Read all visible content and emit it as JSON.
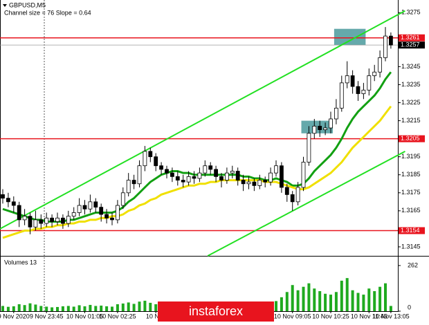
{
  "chart_data": {
    "type": "candlestick",
    "symbol": "GBPUSD,M5",
    "indicator": "Channel size = 76 Slope = 0.64",
    "volume_label": "Volumes 13",
    "watermark": "instaforex",
    "ylim": [
      1.314,
      1.3282
    ],
    "yticks": [
      1.3145,
      1.3165,
      1.3175,
      1.3185,
      1.3195,
      1.3215,
      1.3225,
      1.3235,
      1.3245,
      1.3275
    ],
    "levels": [
      1.3261,
      1.3205,
      1.3154
    ],
    "level_color": "#e8141e",
    "current_price": 1.3257,
    "categories": [
      null,
      null,
      "9 Nov 2020",
      null,
      null,
      null,
      null,
      null,
      "9 Nov 23:45",
      null,
      null,
      null,
      null,
      null,
      null,
      "10 Nov 01:05",
      null,
      null,
      null,
      null,
      null,
      "10 Nov 02:25",
      null,
      null,
      null,
      null,
      null,
      null,
      "10 Nov",
      null,
      null,
      null,
      null,
      null,
      null,
      null,
      null,
      null,
      null,
      null,
      null,
      null,
      null,
      null,
      null,
      null,
      null,
      null,
      null,
      null,
      null,
      null,
      null,
      "10 Nov 09:05",
      null,
      null,
      null,
      null,
      null,
      null,
      "10 Nov 10:25",
      null,
      null,
      null,
      null,
      null,
      null,
      "10 Nov 11:45",
      null,
      null,
      null,
      "10 Nov 13:05"
    ],
    "candles": {
      "open": [
        1.3174,
        1.3172,
        1.317,
        1.3168,
        1.316,
        1.3162,
        1.3156,
        1.316,
        1.3158,
        1.3161,
        1.3159,
        1.3161,
        1.3158,
        1.3162,
        1.3164,
        1.3168,
        1.3166,
        1.317,
        1.3167,
        1.3163,
        1.3161,
        1.316,
        1.3168,
        1.3175,
        1.3182,
        1.318,
        1.319,
        1.3198,
        1.3195,
        1.319,
        1.3188,
        1.3186,
        1.3184,
        1.3182,
        1.3181,
        1.3184,
        1.3183,
        1.3186,
        1.319,
        1.3188,
        1.3184,
        1.3182,
        1.3186,
        1.3187,
        1.3182,
        1.318,
        1.3181,
        1.3179,
        1.3182,
        1.3181,
        1.3186,
        1.319,
        1.3178,
        1.3174,
        1.317,
        1.3178,
        1.3192,
        1.3208,
        1.3212,
        1.321,
        1.3211,
        1.3216,
        1.3222,
        1.3236,
        1.324,
        1.3234,
        1.323,
        1.3232,
        1.324,
        1.3242,
        1.325,
        1.3262
      ],
      "high": [
        1.3177,
        1.3175,
        1.3173,
        1.317,
        1.3166,
        1.3164,
        1.3165,
        1.3163,
        1.3164,
        1.3163,
        1.3164,
        1.3163,
        1.3165,
        1.3167,
        1.3172,
        1.3171,
        1.3174,
        1.3172,
        1.3169,
        1.3166,
        1.3164,
        1.3171,
        1.3178,
        1.3186,
        1.3185,
        1.3193,
        1.3201,
        1.32,
        1.3197,
        1.3192,
        1.319,
        1.3189,
        1.3187,
        1.3185,
        1.3187,
        1.3187,
        1.3189,
        1.3193,
        1.3192,
        1.319,
        1.3186,
        1.3189,
        1.319,
        1.3189,
        1.3185,
        1.3184,
        1.3183,
        1.3185,
        1.3184,
        1.3189,
        1.3193,
        1.3192,
        1.318,
        1.3176,
        1.3181,
        1.3195,
        1.3212,
        1.3216,
        1.3215,
        1.3214,
        1.322,
        1.3227,
        1.324,
        1.3248,
        1.3243,
        1.3237,
        1.3236,
        1.3244,
        1.3246,
        1.3254,
        1.3267,
        1.3264
      ],
      "low": [
        1.3169,
        1.3167,
        1.3164,
        1.3156,
        1.3157,
        1.3152,
        1.3154,
        1.3155,
        1.3156,
        1.3156,
        1.3157,
        1.3155,
        1.3156,
        1.316,
        1.3162,
        1.3163,
        1.3164,
        1.3164,
        1.3159,
        1.3158,
        1.3157,
        1.3158,
        1.3166,
        1.3173,
        1.3177,
        1.3178,
        1.3187,
        1.3192,
        1.3187,
        1.3185,
        1.3183,
        1.3181,
        1.3179,
        1.3178,
        1.3179,
        1.318,
        1.3181,
        1.3184,
        1.3185,
        1.3181,
        1.3178,
        1.318,
        1.3183,
        1.3179,
        1.3176,
        1.3177,
        1.3176,
        1.3177,
        1.3178,
        1.3179,
        1.3184,
        1.3175,
        1.317,
        1.3165,
        1.3168,
        1.3176,
        1.319,
        1.3205,
        1.3206,
        1.3207,
        1.3208,
        1.3213,
        1.322,
        1.3233,
        1.323,
        1.3226,
        1.3227,
        1.3229,
        1.3237,
        1.3239,
        1.3248,
        1.3255
      ],
      "close": [
        1.3172,
        1.317,
        1.3168,
        1.316,
        1.3162,
        1.3156,
        1.316,
        1.3158,
        1.3161,
        1.3159,
        1.3161,
        1.3158,
        1.3162,
        1.3164,
        1.3168,
        1.3166,
        1.317,
        1.3167,
        1.3163,
        1.3161,
        1.316,
        1.3168,
        1.3175,
        1.3182,
        1.318,
        1.319,
        1.3198,
        1.3195,
        1.319,
        1.3188,
        1.3186,
        1.3184,
        1.3182,
        1.3181,
        1.3184,
        1.3183,
        1.3186,
        1.319,
        1.3188,
        1.3184,
        1.3182,
        1.3186,
        1.3187,
        1.3182,
        1.318,
        1.3181,
        1.3179,
        1.3182,
        1.3181,
        1.3186,
        1.319,
        1.3178,
        1.3174,
        1.317,
        1.3178,
        1.3192,
        1.3208,
        1.3212,
        1.321,
        1.3211,
        1.3216,
        1.3222,
        1.3236,
        1.324,
        1.3234,
        1.323,
        1.3232,
        1.324,
        1.3242,
        1.325,
        1.3262,
        1.3257
      ]
    },
    "moving_averages": [
      {
        "color": "#12a012",
        "values": [
          1.3166,
          1.3165,
          1.3164,
          1.3163,
          1.3162,
          1.3161,
          1.316,
          1.316,
          1.3159,
          1.3159,
          1.3159,
          1.3159,
          1.316,
          1.316,
          1.3161,
          1.3162,
          1.3163,
          1.3164,
          1.3164,
          1.3164,
          1.3164,
          1.3165,
          1.3167,
          1.317,
          1.3172,
          1.3175,
          1.3178,
          1.3181,
          1.3183,
          1.3185,
          1.3186,
          1.3187,
          1.3187,
          1.3186,
          1.3186,
          1.3185,
          1.3185,
          1.3185,
          1.3185,
          1.3185,
          1.3185,
          1.3185,
          1.3185,
          1.3185,
          1.3184,
          1.3184,
          1.3183,
          1.3183,
          1.3182,
          1.3182,
          1.3183,
          1.3182,
          1.3181,
          1.3179,
          1.3179,
          1.318,
          1.3183,
          1.3187,
          1.319,
          1.3193,
          1.3196,
          1.32,
          1.3205,
          1.3211,
          1.3216,
          1.322,
          1.3223,
          1.3226,
          1.3229,
          1.3233,
          1.3238,
          1.3242
        ]
      },
      {
        "color": "#f0e000",
        "values": [
          1.315,
          1.3151,
          1.3152,
          1.3153,
          1.3154,
          1.3154,
          1.3155,
          1.3155,
          1.3156,
          1.3156,
          1.3157,
          1.3157,
          1.3158,
          1.3158,
          1.3159,
          1.3159,
          1.316,
          1.316,
          1.3161,
          1.3161,
          1.3162,
          1.3162,
          1.3163,
          1.3165,
          1.3166,
          1.3168,
          1.3169,
          1.3171,
          1.3172,
          1.3174,
          1.3175,
          1.3176,
          1.3177,
          1.3178,
          1.3179,
          1.3179,
          1.318,
          1.318,
          1.3181,
          1.3181,
          1.3182,
          1.3182,
          1.3182,
          1.3182,
          1.3182,
          1.3182,
          1.3182,
          1.3182,
          1.3181,
          1.3181,
          1.3181,
          1.318,
          1.3179,
          1.3178,
          1.3177,
          1.3177,
          1.3178,
          1.318,
          1.3182,
          1.3184,
          1.3186,
          1.3189,
          1.3192,
          1.3196,
          1.32,
          1.3203,
          1.3206,
          1.3209,
          1.3212,
          1.3215,
          1.3219,
          1.3223
        ]
      }
    ],
    "channel": {
      "color": "#22e022",
      "lines": [
        {
          "x": [
            -0.5,
            73.6
          ],
          "y": [
            1.3155,
            1.3276
          ]
        },
        {
          "x": [
            37.5,
            73.6
          ],
          "y": [
            1.314,
            1.3198
          ]
        }
      ]
    },
    "zones": {
      "color": "#4a9a9c",
      "items": [
        {
          "x": [
            55,
            60
          ],
          "y": [
            1.3208,
            1.3215
          ]
        },
        {
          "x": [
            61,
            66
          ],
          "y": [
            1.3257,
            1.3266
          ]
        }
      ]
    },
    "volumes": {
      "color": "#1faa1f",
      "ylim": [
        0,
        262
      ],
      "yticks": [
        262,
        0
      ],
      "values": [
        30,
        25,
        28,
        40,
        35,
        45,
        38,
        30,
        26,
        22,
        24,
        28,
        30,
        26,
        34,
        28,
        36,
        30,
        32,
        28,
        26,
        40,
        44,
        50,
        42,
        55,
        60,
        48,
        40,
        36,
        34,
        30,
        28,
        26,
        32,
        30,
        34,
        38,
        32,
        30,
        28,
        34,
        36,
        40,
        38,
        34,
        32,
        36,
        34,
        44,
        58,
        80,
        110,
        150,
        120,
        140,
        160,
        130,
        115,
        100,
        95,
        110,
        175,
        190,
        120,
        105,
        95,
        130,
        115,
        140,
        160,
        30
      ]
    }
  }
}
